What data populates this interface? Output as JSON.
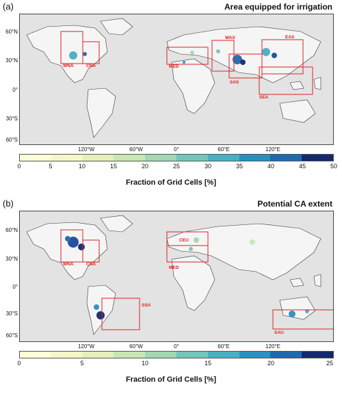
{
  "panels": [
    {
      "label": "(a)",
      "title": "Area equipped for irrigation",
      "lat_ticks": [
        "60°N",
        "30°N",
        "0°",
        "30°S",
        "60°S"
      ],
      "lon_ticks": [
        "120°W",
        "60°W",
        "0°",
        "60°E",
        "120°E"
      ],
      "colorbar_ticks": [
        "0",
        "5",
        "10",
        "15",
        "20",
        "25",
        "30",
        "35",
        "40",
        "45",
        "50"
      ],
      "colorbar_title": "Fraction of Grid Cells [%]",
      "regions": [
        "WNA",
        "CNA",
        "MED",
        "WAS",
        "EAS",
        "SAS",
        "SEA"
      ]
    },
    {
      "label": "(b)",
      "title": "Potential CA extent",
      "lat_ticks": [
        "60°N",
        "30°N",
        "0°",
        "30°S",
        "60°S"
      ],
      "lon_ticks": [
        "120°W",
        "60°W",
        "0°",
        "60°E",
        "120°E"
      ],
      "colorbar_ticks": [
        "0",
        "5",
        "10",
        "15",
        "20",
        "25"
      ],
      "colorbar_title": "Fraction of Grid Cells [%]",
      "regions": [
        "WNA",
        "CNA",
        "CEU",
        "MED",
        "SSA",
        "SAU"
      ]
    }
  ],
  "colors": {
    "ocean": "#e3e3e3",
    "land": "#f5f5f5",
    "region_box": "#e02020",
    "colormap": [
      "#fdfdd8",
      "#f4f8c6",
      "#e3f1b8",
      "#c9e7b2",
      "#a2d8b4",
      "#74c5bb",
      "#4aafc3",
      "#2b8fbf",
      "#2169ad",
      "#1d4a9a",
      "#14296b"
    ]
  }
}
